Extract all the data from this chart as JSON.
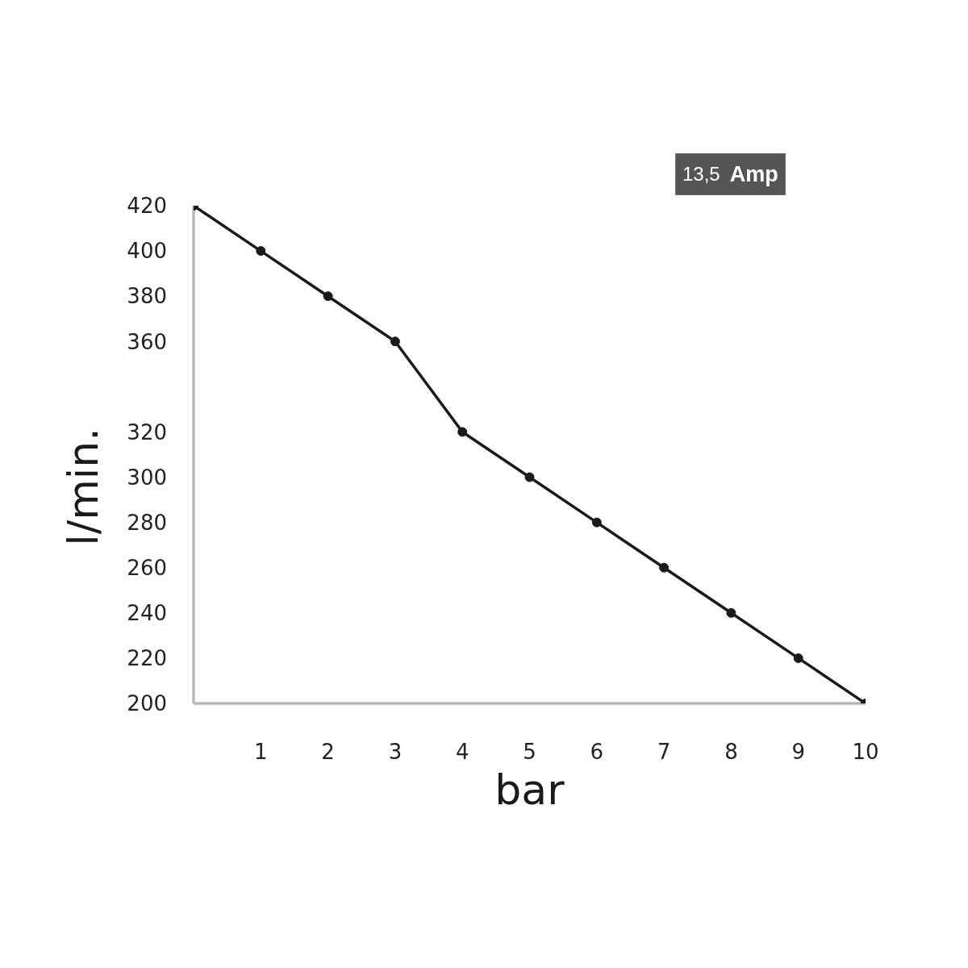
{
  "chart_data": {
    "type": "line",
    "x": [
      0,
      1,
      2,
      3,
      4,
      5,
      6,
      7,
      8,
      9,
      10
    ],
    "values": [
      420,
      400,
      380,
      360,
      320,
      300,
      280,
      260,
      240,
      220,
      200
    ],
    "color": "#1a1a1a",
    "xlim": [
      0,
      10
    ],
    "ylim": [
      200,
      420
    ],
    "xticks": [
      1,
      2,
      3,
      4,
      5,
      6,
      7,
      8,
      9,
      10
    ],
    "yticks": [
      200,
      220,
      240,
      260,
      280,
      300,
      320,
      360,
      380,
      400,
      420
    ],
    "xlabel": "bar",
    "ylabel": "l/min.",
    "annotations": [
      "13,5 Amp"
    ],
    "marker": "circle",
    "line_style": "solid"
  }
}
